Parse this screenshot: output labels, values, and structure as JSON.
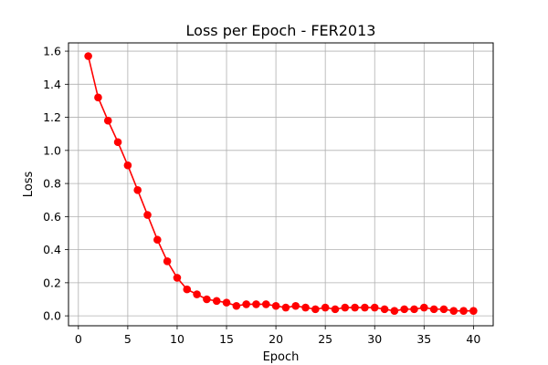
{
  "chart_data": {
    "type": "line",
    "title": "Loss per Epoch - FER2013",
    "xlabel": "Epoch",
    "ylabel": "Loss",
    "xlim": [
      -1,
      42
    ],
    "ylim": [
      -0.06,
      1.65
    ],
    "xticks": [
      0,
      5,
      10,
      15,
      20,
      25,
      30,
      35,
      40
    ],
    "yticks": [
      0.0,
      0.2,
      0.4,
      0.6,
      0.8,
      1.0,
      1.2,
      1.4,
      1.6
    ],
    "xtick_labels": [
      "0",
      "5",
      "10",
      "15",
      "20",
      "25",
      "30",
      "35",
      "40"
    ],
    "ytick_labels": [
      "0.0",
      "0.2",
      "0.4",
      "0.6",
      "0.8",
      "1.0",
      "1.2",
      "1.4",
      "1.6"
    ],
    "grid": true,
    "marker": "circle",
    "series": [
      {
        "color": "#ff0000",
        "x": [
          1,
          2,
          3,
          4,
          5,
          6,
          7,
          8,
          9,
          10,
          11,
          12,
          13,
          14,
          15,
          16,
          17,
          18,
          19,
          20,
          21,
          22,
          23,
          24,
          25,
          26,
          27,
          28,
          29,
          30,
          31,
          32,
          33,
          34,
          35,
          36,
          37,
          38,
          39,
          40
        ],
        "values": [
          1.57,
          1.32,
          1.18,
          1.05,
          0.91,
          0.76,
          0.61,
          0.46,
          0.33,
          0.23,
          0.16,
          0.13,
          0.1,
          0.09,
          0.08,
          0.06,
          0.07,
          0.07,
          0.07,
          0.06,
          0.05,
          0.06,
          0.05,
          0.04,
          0.05,
          0.04,
          0.05,
          0.05,
          0.05,
          0.05,
          0.04,
          0.03,
          0.04,
          0.04,
          0.05,
          0.04,
          0.04,
          0.03,
          0.03,
          0.03
        ]
      }
    ]
  }
}
